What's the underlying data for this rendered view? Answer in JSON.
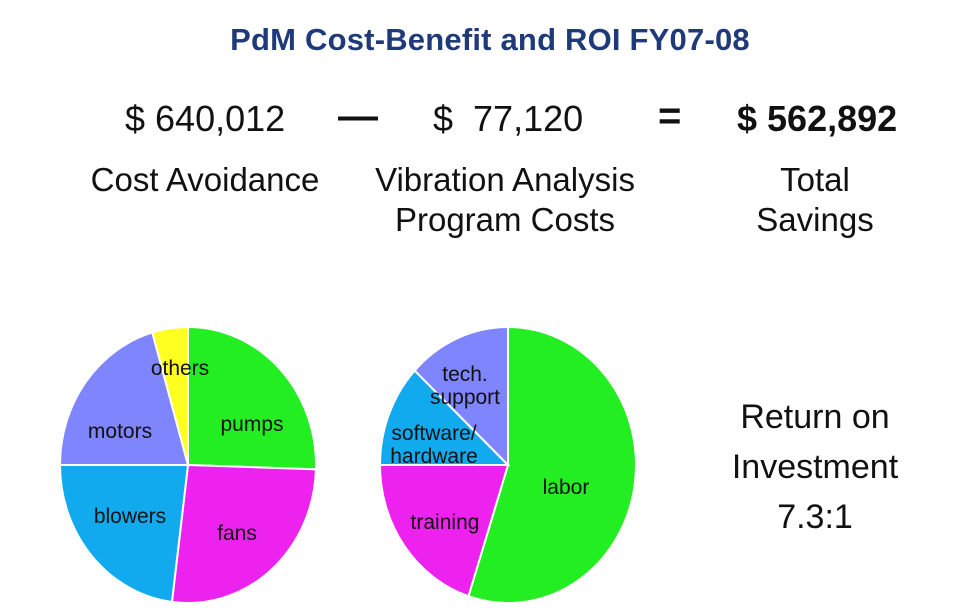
{
  "header": {
    "title": "PdM Cost-Benefit and ROI FY07-08"
  },
  "equation": {
    "cost_avoidance_value": "$ 640,012",
    "minus_symbol": "—",
    "program_costs_value": "$  77,120",
    "equals_symbol": "=",
    "total_savings_value": "$ 562,892",
    "cost_avoidance_label": "Cost Avoidance",
    "program_costs_label_line1": "Vibration Analysis",
    "program_costs_label_line2": "Program Costs",
    "total_savings_label_line1": "Total",
    "total_savings_label_line2": "Savings"
  },
  "roi": {
    "line1": "Return on",
    "line2": "Investment",
    "line3": "7.3:1"
  },
  "chart_data": [
    {
      "type": "pie",
      "title": "",
      "slices": [
        {
          "label": "pumps",
          "value": 25.5,
          "color": "#22ee22"
        },
        {
          "label": "fans",
          "value": 26.5,
          "color": "#ee22ee"
        },
        {
          "label": "blowers",
          "value": 23.0,
          "color": "#11aaee"
        },
        {
          "label": "motors",
          "value": 20.5,
          "color": "#7f84ff"
        },
        {
          "label": "others",
          "value": 4.5,
          "color": "#ffff22"
        }
      ]
    },
    {
      "type": "pie",
      "title": "",
      "slices": [
        {
          "label": "labor",
          "value": 55.0,
          "color": "#22ee22"
        },
        {
          "label": "training",
          "value": 20.0,
          "color": "#ee22ee"
        },
        {
          "label": "software/ hardware",
          "value": 12.0,
          "color": "#11aaee"
        },
        {
          "label": "tech. support",
          "value": 13.0,
          "color": "#7f84ff"
        }
      ]
    }
  ]
}
